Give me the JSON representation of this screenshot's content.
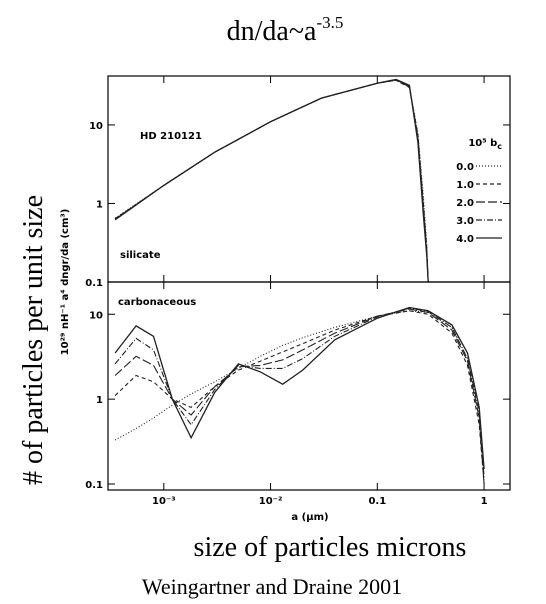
{
  "title": {
    "base": "dn/da~a",
    "exponent": "-3.5"
  },
  "ylabel": "# of particles per unit size",
  "xlabel": "size of particles microns",
  "source": "Weingartner and Draine 2001",
  "chart_data": [
    {
      "type": "line",
      "log_x": true,
      "log_y": true,
      "annotations": [
        "HD 210121",
        "silicate"
      ],
      "ylabel": "10²⁹ nH⁻¹ a⁴ dngr/da (cm³)",
      "legend": "right",
      "legend_title": {
        "text": "10⁵ b",
        "sub": "c"
      },
      "xlim": [
        0.0003,
        1.75
      ],
      "ylim": [
        0.1,
        42
      ],
      "xticks": [
        0.001,
        0.01,
        0.1,
        1
      ],
      "yticks": [
        0.1,
        1,
        10
      ],
      "x": [
        0.00035,
        0.001,
        0.003,
        0.01,
        0.03,
        0.1,
        0.15,
        0.2,
        0.24,
        0.27,
        0.29,
        0.3
      ],
      "series": [
        {
          "name": "0.0",
          "color": "#222",
          "style": "dotted",
          "values": [
            0.65,
            1.7,
            4.5,
            11,
            22,
            34,
            37,
            30,
            8,
            1.2,
            0.3,
            0.1
          ]
        },
        {
          "name": "1.0",
          "color": "#222",
          "style": "dashed",
          "values": [
            0.64,
            1.7,
            4.5,
            11,
            22,
            34,
            37,
            30,
            7.5,
            1.0,
            0.28,
            0.1
          ]
        },
        {
          "name": "2.0",
          "color": "#222",
          "style": "long-dashed",
          "values": [
            0.63,
            1.7,
            4.5,
            11,
            22,
            34,
            37.5,
            31,
            7,
            0.9,
            0.26,
            0.1
          ]
        },
        {
          "name": "3.0",
          "color": "#222",
          "style": "dash-dot",
          "values": [
            0.63,
            1.7,
            4.5,
            11,
            22,
            34,
            37.5,
            31,
            6.5,
            0.8,
            0.24,
            0.1
          ]
        },
        {
          "name": "4.0",
          "color": "#222",
          "style": "solid",
          "values": [
            0.62,
            1.7,
            4.5,
            11,
            22,
            34,
            38,
            32,
            6,
            0.7,
            0.22,
            0.1
          ]
        }
      ]
    },
    {
      "type": "line",
      "log_x": true,
      "log_y": true,
      "annotations": [
        "carbonaceous"
      ],
      "xaxis_label": "a (μm)",
      "xlim": [
        0.0003,
        1.75
      ],
      "ylim": [
        0.085,
        24
      ],
      "xticks": [
        {
          "value": 0.001,
          "label": "10⁻³"
        },
        {
          "value": 0.01,
          "label": "10⁻²"
        },
        0.1,
        1
      ],
      "yticks": [
        0.1,
        1,
        10
      ],
      "x": [
        0.00035,
        0.00055,
        0.0008,
        0.0012,
        0.0018,
        0.003,
        0.005,
        0.008,
        0.013,
        0.02,
        0.04,
        0.1,
        0.2,
        0.3,
        0.5,
        0.7,
        0.9,
        1.0
      ],
      "series": [
        {
          "color": "#222",
          "style": "dotted",
          "values": [
            0.33,
            0.45,
            0.6,
            0.85,
            1.15,
            1.6,
            2.3,
            3.2,
            4.3,
            5.3,
            7,
            9.5,
            11,
            10.5,
            7,
            3,
            0.6,
            0.1
          ]
        },
        {
          "color": "#222",
          "style": "dashed",
          "values": [
            1.1,
            1.9,
            1.6,
            1.0,
            0.8,
            1.4,
            2.2,
            2.8,
            3.6,
            4.5,
            6.5,
            9.5,
            11,
            10,
            6,
            2.5,
            0.5,
            0.1
          ]
        },
        {
          "color": "#222",
          "style": "long-dashed",
          "values": [
            1.9,
            3.2,
            2.5,
            1.0,
            0.65,
            1.4,
            2.4,
            2.5,
            2.9,
            3.8,
            6,
            9.5,
            11.5,
            10.5,
            6.5,
            2.8,
            0.6,
            0.1
          ]
        },
        {
          "color": "#222",
          "style": "dash-dot",
          "values": [
            2.6,
            5.2,
            3.8,
            1.0,
            0.5,
            1.3,
            2.5,
            2.3,
            2.3,
            3.0,
            5.5,
            9.3,
            11.8,
            10.8,
            7,
            3,
            0.7,
            0.12
          ]
        },
        {
          "color": "#222",
          "style": "solid",
          "values": [
            3.5,
            7.3,
            5.5,
            1.0,
            0.35,
            1.2,
            2.6,
            2.1,
            1.5,
            2.2,
            5,
            9,
            12,
            11,
            7.5,
            3.5,
            0.8,
            0.15
          ]
        }
      ]
    }
  ]
}
